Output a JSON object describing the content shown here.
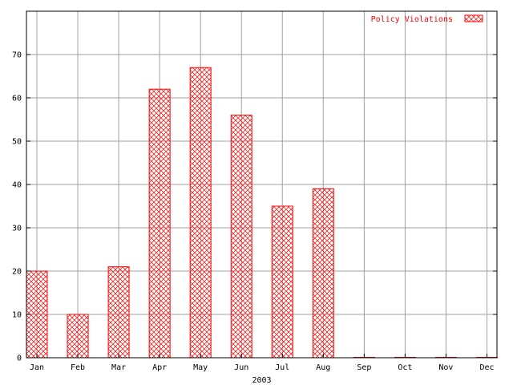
{
  "chart_data": {
    "type": "bar",
    "title": "",
    "xlabel": "2003",
    "ylabel": "",
    "categories": [
      "Jan",
      "Feb",
      "Mar",
      "Apr",
      "May",
      "Jun",
      "Jul",
      "Aug",
      "Sep",
      "Oct",
      "Nov",
      "Dec"
    ],
    "series": [
      {
        "name": "Policy Violations",
        "values": [
          20,
          10,
          21,
          62,
          67,
          56,
          35,
          39,
          0,
          0,
          0,
          0
        ]
      }
    ],
    "ylim": [
      0,
      80
    ],
    "yticks": [
      0,
      10,
      20,
      30,
      40,
      50,
      60,
      70
    ],
    "grid": true,
    "legend_position": "top-right",
    "colors": {
      "bar": "#ff0000",
      "grid": "#a0a0a0",
      "axis": "#000000"
    }
  }
}
